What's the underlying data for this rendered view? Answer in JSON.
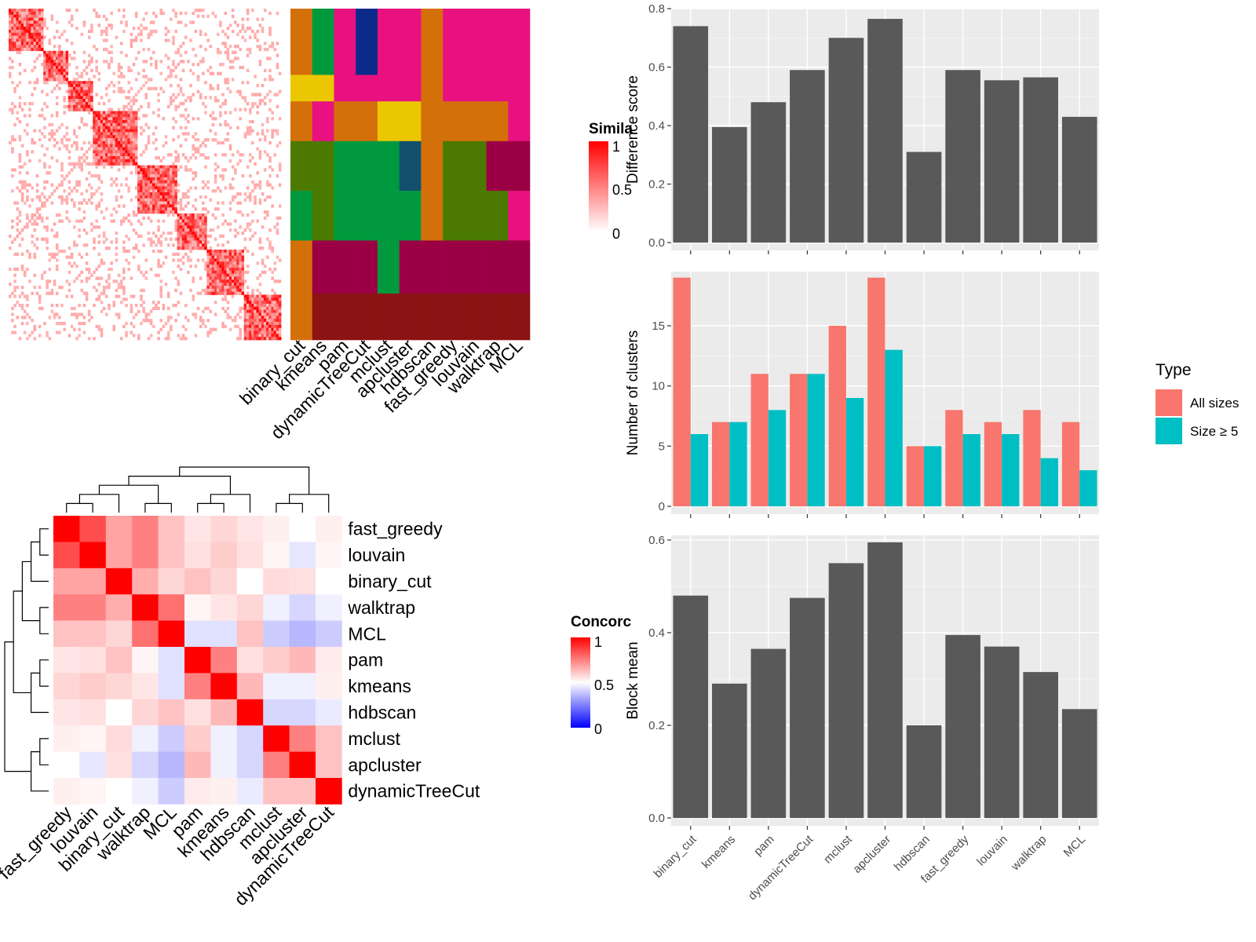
{
  "colors": {
    "panel_bg": "#ebebeb",
    "grid": "#ffffff",
    "bar_gray": "#595959",
    "all_sizes": "#f8766d",
    "size_ge5": "#00bfc4",
    "sim_high": "#ff0000",
    "conc_high": "#ff0000",
    "conc_low": "#0000ff"
  },
  "chart_data": [
    {
      "id": "similarity_heatmap",
      "type": "heatmap",
      "legend_title": "Simila",
      "legend_ticks": [
        "1",
        "0.5",
        "0"
      ],
      "column_labels": [
        "binary_cut",
        "kmeans",
        "pam",
        "dynamicTreeCut",
        "mclust",
        "apcluster",
        "hdbscan",
        "fast_greedy",
        "louvain",
        "walktrap",
        "MCL"
      ]
    },
    {
      "id": "concordance_heatmap",
      "type": "heatmap",
      "legend_title": "Concorc",
      "legend_ticks": [
        "1",
        "0.5",
        "0"
      ],
      "row_labels": [
        "fast_greedy",
        "louvain",
        "binary_cut",
        "walktrap",
        "MCL",
        "pam",
        "kmeans",
        "hdbscan",
        "mclust",
        "apcluster",
        "dynamicTreeCut"
      ],
      "col_labels": [
        "fast_greedy",
        "louvain",
        "binary_cut",
        "walktrap",
        "MCL",
        "pam",
        "kmeans",
        "hdbscan",
        "mclust",
        "apcluster",
        "dynamicTreeCut"
      ],
      "values": [
        [
          1.0,
          0.85,
          0.68,
          0.75,
          0.62,
          0.55,
          0.58,
          0.55,
          0.53,
          0.5,
          0.53
        ],
        [
          0.85,
          1.0,
          0.68,
          0.75,
          0.62,
          0.56,
          0.6,
          0.56,
          0.52,
          0.45,
          0.52
        ],
        [
          0.68,
          0.68,
          1.0,
          0.66,
          0.58,
          0.62,
          0.58,
          0.5,
          0.57,
          0.56,
          0.5
        ],
        [
          0.75,
          0.75,
          0.66,
          1.0,
          0.78,
          0.52,
          0.55,
          0.58,
          0.47,
          0.42,
          0.47
        ],
        [
          0.62,
          0.62,
          0.58,
          0.78,
          1.0,
          0.44,
          0.44,
          0.62,
          0.4,
          0.36,
          0.4
        ],
        [
          0.55,
          0.56,
          0.62,
          0.52,
          0.44,
          1.0,
          0.75,
          0.56,
          0.6,
          0.64,
          0.54
        ],
        [
          0.58,
          0.6,
          0.58,
          0.55,
          0.44,
          0.75,
          1.0,
          0.64,
          0.47,
          0.47,
          0.53
        ],
        [
          0.55,
          0.56,
          0.5,
          0.58,
          0.62,
          0.56,
          0.64,
          1.0,
          0.42,
          0.42,
          0.46
        ],
        [
          0.53,
          0.52,
          0.57,
          0.47,
          0.4,
          0.6,
          0.47,
          0.42,
          1.0,
          0.75,
          0.62
        ],
        [
          0.5,
          0.45,
          0.56,
          0.42,
          0.36,
          0.64,
          0.47,
          0.42,
          0.75,
          1.0,
          0.62
        ],
        [
          0.53,
          0.52,
          0.5,
          0.47,
          0.4,
          0.54,
          0.53,
          0.46,
          0.62,
          0.62,
          1.0
        ]
      ]
    },
    {
      "id": "difference_score",
      "type": "bar",
      "ylabel": "Difference score",
      "ylim": [
        0,
        0.8
      ],
      "yticks": [
        "0.0",
        "0.2",
        "0.4",
        "0.6",
        "0.8"
      ],
      "categories": [
        "binary_cut",
        "kmeans",
        "pam",
        "dynamicTreeCut",
        "mclust",
        "apcluster",
        "hdbscan",
        "fast_greedy",
        "louvain",
        "walktrap",
        "MCL"
      ],
      "values": [
        0.74,
        0.395,
        0.48,
        0.59,
        0.7,
        0.765,
        0.31,
        0.59,
        0.555,
        0.565,
        0.43
      ]
    },
    {
      "id": "number_of_clusters",
      "type": "bar",
      "ylabel": "Number of clusters",
      "ylim": [
        0,
        19.5
      ],
      "yticks": [
        "0",
        "5",
        "10",
        "15"
      ],
      "categories": [
        "binary_cut",
        "kmeans",
        "pam",
        "dynamicTreeCut",
        "mclust",
        "apcluster",
        "hdbscan",
        "fast_greedy",
        "louvain",
        "walktrap",
        "MCL"
      ],
      "legend_title": "Type",
      "series": [
        {
          "name": "All sizes",
          "values": [
            19,
            7,
            11,
            11,
            15,
            19,
            5,
            8,
            7,
            8,
            7
          ]
        },
        {
          "name": "Size ≥ 5",
          "values": [
            6,
            7,
            8,
            11,
            9,
            13,
            5,
            6,
            6,
            4,
            3
          ]
        }
      ]
    },
    {
      "id": "block_mean",
      "type": "bar",
      "ylabel": "Block mean",
      "ylim": [
        0,
        0.61
      ],
      "yticks": [
        "0.0",
        "0.2",
        "0.4",
        "0.6"
      ],
      "categories": [
        "binary_cut",
        "kmeans",
        "pam",
        "dynamicTreeCut",
        "mclust",
        "apcluster",
        "hdbscan",
        "fast_greedy",
        "louvain",
        "walktrap",
        "MCL"
      ],
      "values": [
        0.48,
        0.29,
        0.365,
        0.475,
        0.55,
        0.595,
        0.2,
        0.395,
        0.37,
        0.315,
        0.235
      ]
    }
  ]
}
